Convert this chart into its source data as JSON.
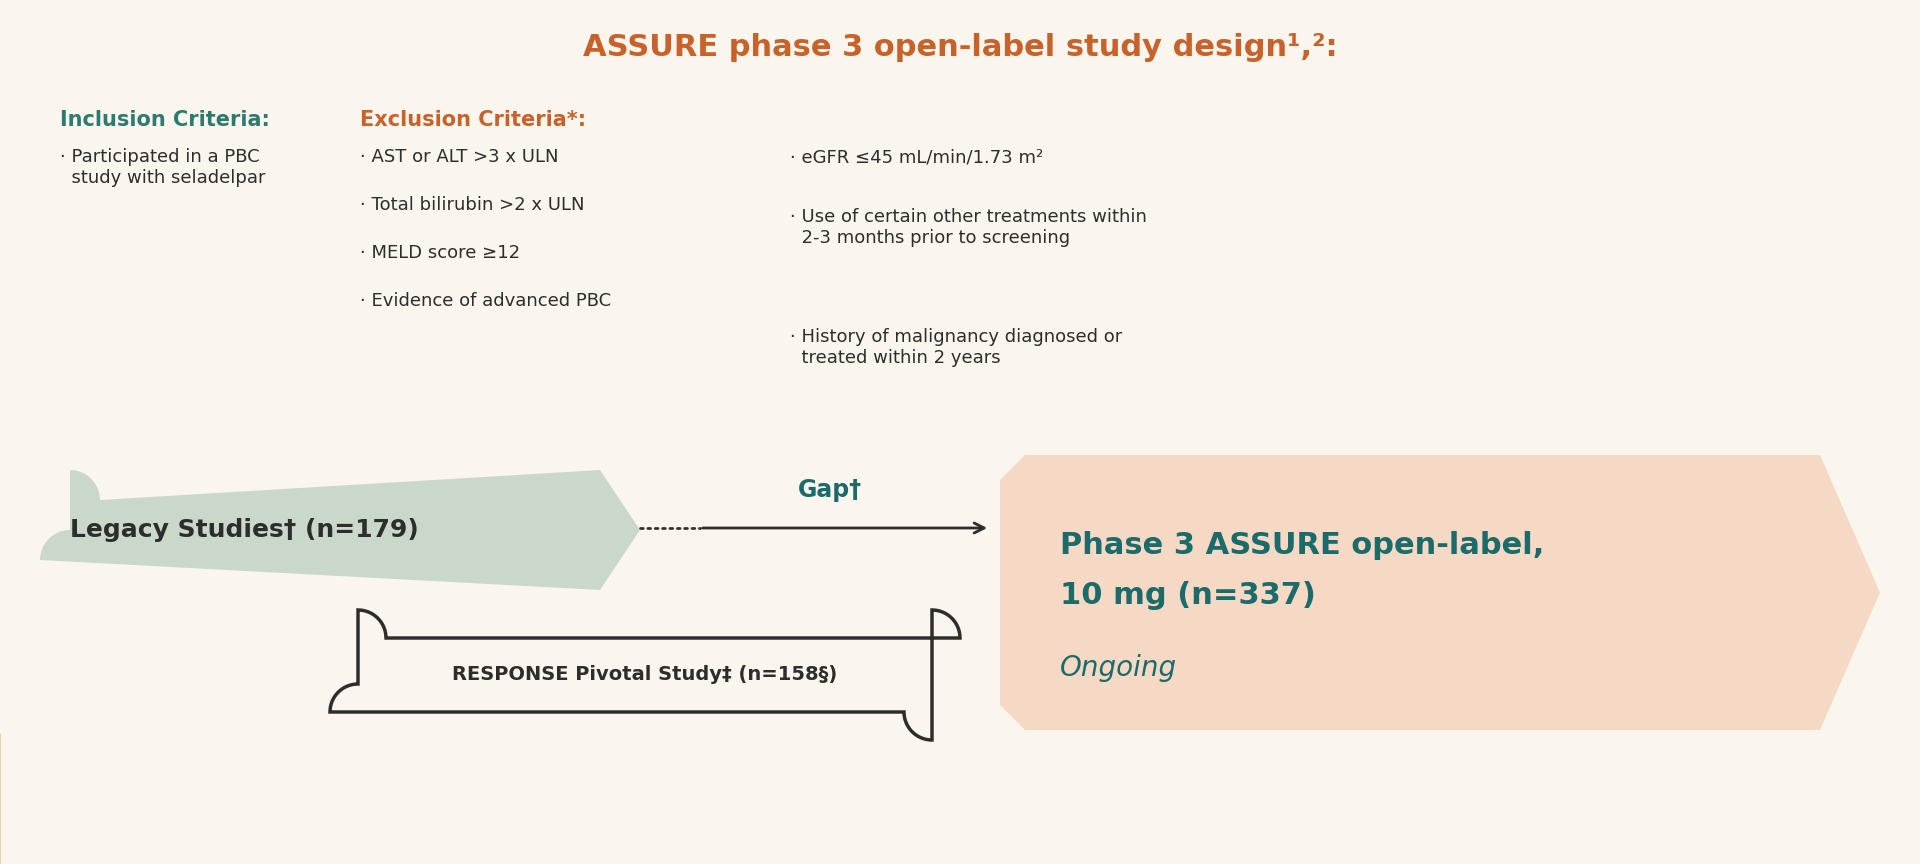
{
  "title": "ASSURE phase 3 open-label study design¹,²:",
  "title_color": "#C8622A",
  "bg_color": "#FAF6EE",
  "text_color_dark": "#2D2D2D",
  "text_color_teal": "#1B6B6B",
  "inclusion_header": "Inclusion Criteria:",
  "inclusion_header_color": "#2D7A6E",
  "inclusion_item": "· Participated in a PBC\n  study with seladelpar",
  "exclusion_header": "Exclusion Criteria*:",
  "exclusion_header_color": "#C8622A",
  "exclusion_col1": [
    "· AST or ALT >3 x ULN",
    "· Total bilirubin >2 x ULN",
    "· MELD score ≥12",
    "· Evidence of advanced PBC"
  ],
  "exclusion_col2": [
    "· eGFR ≤45 mL/min/1.73 m²",
    "· Use of certain other treatments within\n  2-3 months prior to screening",
    "· History of malignancy diagnosed or\n  treated within 2 years"
  ],
  "legacy_box_color": "#C5D5C5",
  "legacy_text": "Legacy Studies† (n=179)",
  "assure_box_color": "#F5D9C4",
  "assure_text_line1": "Phase 3 ASSURE open-label,",
  "assure_text_line2": "10 mg (n=337)",
  "assure_ongoing": "Ongoing",
  "response_text": "RESPONSE Pivotal Study‡ (n=158§)",
  "gap_label": "Gap†",
  "gap_label_color": "#1B6B6B",
  "gold_color": "#C8A050"
}
